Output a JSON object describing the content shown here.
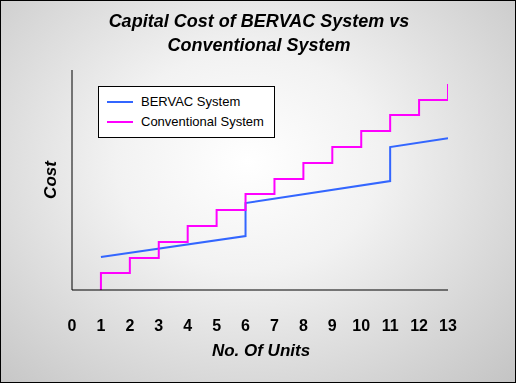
{
  "chart_data": {
    "type": "line",
    "title": "Capital Cost of BERVAC System vs Conventional System",
    "xlabel": "No. Of Units",
    "ylabel": "Cost",
    "xlim": [
      0,
      13
    ],
    "xticks": [
      0,
      1,
      2,
      3,
      4,
      5,
      6,
      7,
      8,
      9,
      10,
      11,
      12,
      13
    ],
    "ylim": [
      0,
      100
    ],
    "tick_labels": "x",
    "grid": false,
    "legend": "upper left",
    "series": [
      {
        "name": "BERVAC System",
        "color": "#3366ff",
        "type": "line",
        "x": [
          1,
          6,
          6,
          11,
          11,
          13
        ],
        "values": [
          15,
          24.5,
          39.5,
          49.5,
          65,
          69
        ]
      },
      {
        "name": "Conventional System",
        "color": "#ff00ff",
        "type": "step",
        "x": [
          1,
          1,
          2,
          3,
          4,
          5,
          6,
          7,
          8,
          9,
          10,
          11,
          12,
          13
        ],
        "values": [
          0,
          7.7,
          14.5,
          21.8,
          29.1,
          36.4,
          43.6,
          50.5,
          57.7,
          65,
          72.3,
          79.5,
          86.4,
          93.6
        ]
      }
    ]
  }
}
